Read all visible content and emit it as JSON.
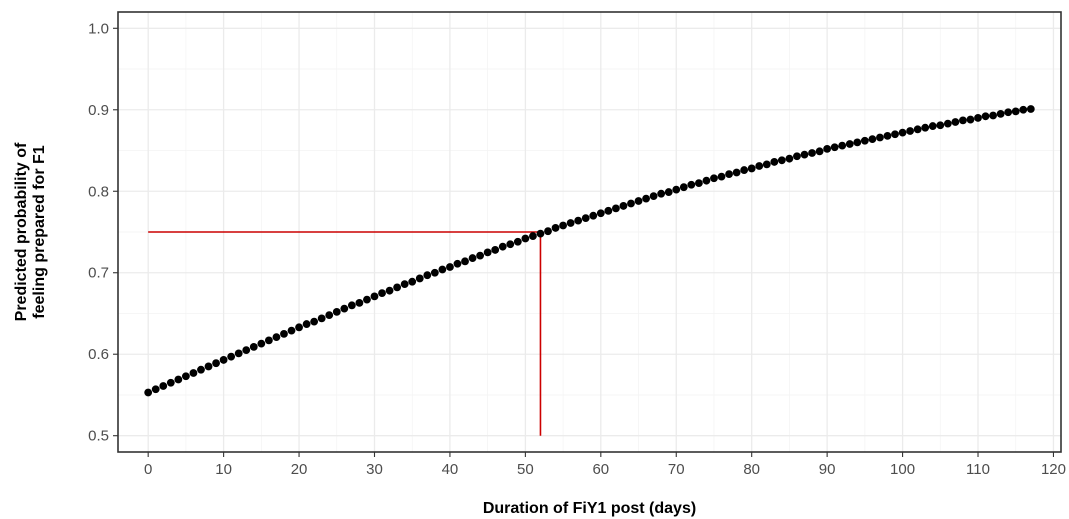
{
  "chart_data": {
    "type": "scatter",
    "title": "",
    "xlabel": "Duration of FiY1 post (days)",
    "ylabel_lines": [
      "Predicted probability of",
      "feeling prepared for F1"
    ],
    "xlim": [
      -4,
      121
    ],
    "ylim": [
      0.48,
      1.02
    ],
    "xticks": [
      0,
      10,
      20,
      30,
      40,
      50,
      60,
      70,
      80,
      90,
      100,
      110,
      120
    ],
    "yticks": [
      0.5,
      0.6,
      0.7,
      0.8,
      0.9,
      1.0
    ],
    "xtick_labels": [
      "0",
      "10",
      "20",
      "30",
      "40",
      "50",
      "60",
      "70",
      "80",
      "90",
      "100",
      "110",
      "120"
    ],
    "ytick_labels": [
      "0.5",
      "0.6",
      "0.7",
      "0.8",
      "0.9",
      "1.0"
    ],
    "grid": true,
    "series": [
      {
        "x": [
          0,
          1,
          2,
          3,
          4,
          5,
          6,
          7,
          8,
          9,
          10,
          11,
          12,
          13,
          14,
          15,
          16,
          17,
          18,
          19,
          20,
          21,
          22,
          23,
          24,
          25,
          26,
          27,
          28,
          29,
          30,
          31,
          32,
          33,
          34,
          35,
          36,
          37,
          38,
          39,
          40,
          41,
          42,
          43,
          44,
          45,
          46,
          47,
          48,
          49,
          50,
          51,
          52,
          53,
          54,
          55,
          56,
          57,
          58,
          59,
          60,
          61,
          62,
          63,
          64,
          65,
          66,
          67,
          68,
          69,
          70,
          71,
          72,
          73,
          74,
          75,
          76,
          77,
          78,
          79,
          80,
          81,
          82,
          83,
          84,
          85,
          86,
          87,
          88,
          89,
          90,
          91,
          92,
          93,
          94,
          95,
          96,
          97,
          98,
          99,
          100,
          101,
          102,
          103,
          104,
          105,
          106,
          107,
          108,
          109,
          110,
          111,
          112,
          113,
          114,
          115,
          116,
          117
        ],
        "y": [
          0.553,
          0.557,
          0.561,
          0.565,
          0.569,
          0.573,
          0.577,
          0.581,
          0.585,
          0.589,
          0.593,
          0.597,
          0.601,
          0.605,
          0.609,
          0.613,
          0.617,
          0.621,
          0.625,
          0.629,
          0.633,
          0.637,
          0.64,
          0.644,
          0.648,
          0.652,
          0.656,
          0.66,
          0.663,
          0.667,
          0.671,
          0.675,
          0.678,
          0.682,
          0.686,
          0.689,
          0.693,
          0.697,
          0.7,
          0.704,
          0.707,
          0.711,
          0.714,
          0.718,
          0.721,
          0.725,
          0.728,
          0.732,
          0.735,
          0.738,
          0.742,
          0.745,
          0.748,
          0.751,
          0.755,
          0.758,
          0.761,
          0.764,
          0.767,
          0.77,
          0.773,
          0.776,
          0.779,
          0.782,
          0.785,
          0.788,
          0.791,
          0.794,
          0.797,
          0.799,
          0.802,
          0.805,
          0.808,
          0.81,
          0.813,
          0.816,
          0.818,
          0.821,
          0.823,
          0.826,
          0.828,
          0.831,
          0.833,
          0.836,
          0.838,
          0.84,
          0.843,
          0.845,
          0.847,
          0.849,
          0.852,
          0.854,
          0.856,
          0.858,
          0.86,
          0.862,
          0.864,
          0.866,
          0.868,
          0.87,
          0.872,
          0.874,
          0.876,
          0.878,
          0.88,
          0.881,
          0.883,
          0.885,
          0.887,
          0.888,
          0.89,
          0.892,
          0.893,
          0.895,
          0.897,
          0.898,
          0.9,
          0.901
        ],
        "color": "#000000"
      }
    ],
    "reference_lines": {
      "color": "#cc0000",
      "target_x": 52,
      "target_y": 0.75,
      "x_start": 0,
      "y_start": 0.5
    }
  }
}
